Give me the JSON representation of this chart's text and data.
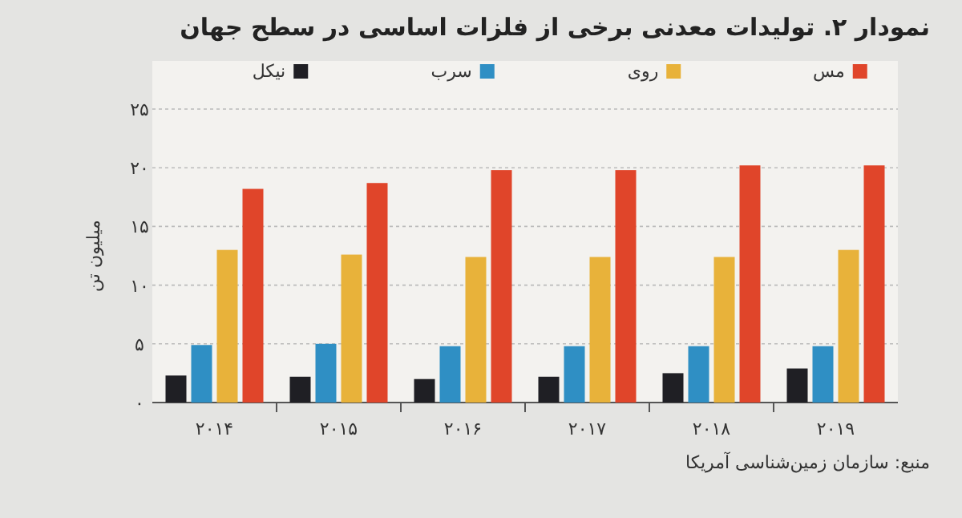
{
  "chart_data": {
    "type": "bar",
    "title": "نمودار ۲. تولیدات معدنی برخی از فلزات اساسی در سطح جهان",
    "ylabel": "میلیون تن",
    "annotations": [
      "منبع: سازمان زمین‌شناسی آمریکا"
    ],
    "categories": [
      "۲۰۱۴",
      "۲۰۱۵",
      "۲۰۱۶",
      "۲۰۱۷",
      "۲۰۱۸",
      "۲۰۱۹"
    ],
    "series": [
      {
        "name": "نیکل",
        "color": "#1f1f24",
        "values": [
          2.3,
          2.2,
          2.0,
          2.2,
          2.5,
          2.9
        ]
      },
      {
        "name": "سرب",
        "color": "#2f8fc4",
        "values": [
          4.9,
          5.0,
          4.8,
          4.8,
          4.8,
          4.8
        ]
      },
      {
        "name": "روی",
        "color": "#e8b23a",
        "values": [
          13.0,
          12.6,
          12.4,
          12.4,
          12.4,
          13.0
        ]
      },
      {
        "name": "مس",
        "color": "#e0452a",
        "values": [
          18.2,
          18.7,
          19.8,
          19.8,
          20.2,
          20.2
        ]
      }
    ],
    "ylim": [
      0,
      25
    ],
    "yticks": [
      {
        "value": 0,
        "label": "۰"
      },
      {
        "value": 5,
        "label": "۵"
      },
      {
        "value": 10,
        "label": "۱۰"
      },
      {
        "value": 15,
        "label": "۱۵"
      },
      {
        "value": 20,
        "label": "۲۰"
      },
      {
        "value": 25,
        "label": "۲۵"
      }
    ],
    "grid": "y",
    "legend": "top"
  }
}
